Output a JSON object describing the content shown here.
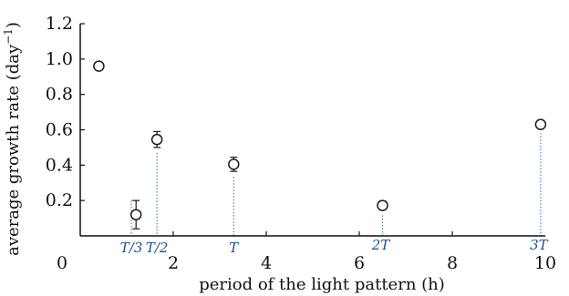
{
  "chart_data": {
    "type": "scatter",
    "xlabel": "period of the light pattern (h)",
    "ylabel_main": "average growth rate (day",
    "ylabel_sup": "−1",
    "ylabel_close": ")",
    "xlim": [
      0,
      10
    ],
    "ylim": [
      0,
      1.2
    ],
    "x_ticks": [
      0,
      2,
      4,
      6,
      8,
      10
    ],
    "x_tick_labels": [
      "0",
      "2",
      "4",
      "6",
      "8",
      "10"
    ],
    "y_ticks": [
      0.2,
      0.4,
      0.6,
      0.8,
      1.0,
      1.2
    ],
    "y_tick_labels": [
      "0.2",
      "0.4",
      "0.6",
      "0.8",
      "1.0",
      "1.2"
    ],
    "grid": false,
    "points": [
      {
        "x": 0.4,
        "y": 0.96,
        "err": 0.0
      },
      {
        "x": 1.2,
        "y": 0.12,
        "err": 0.08
      },
      {
        "x": 1.65,
        "y": 0.545,
        "err": 0.045
      },
      {
        "x": 3.3,
        "y": 0.405,
        "err": 0.04
      },
      {
        "x": 6.5,
        "y": 0.172,
        "err": 0.025
      },
      {
        "x": 9.9,
        "y": 0.63,
        "err": 0.018
      }
    ],
    "reference_lines": [
      {
        "label": "T/3",
        "x": 1.1
      },
      {
        "label": "T/2",
        "x": 1.65
      },
      {
        "label": "T",
        "x": 3.3
      },
      {
        "label": "2T",
        "x": 6.5
      },
      {
        "label": "3T",
        "x": 9.9
      }
    ],
    "colors": {
      "points": "#1a1a1a",
      "reference": "#4a7fc1",
      "reference_label": "#1f4e9a"
    }
  }
}
